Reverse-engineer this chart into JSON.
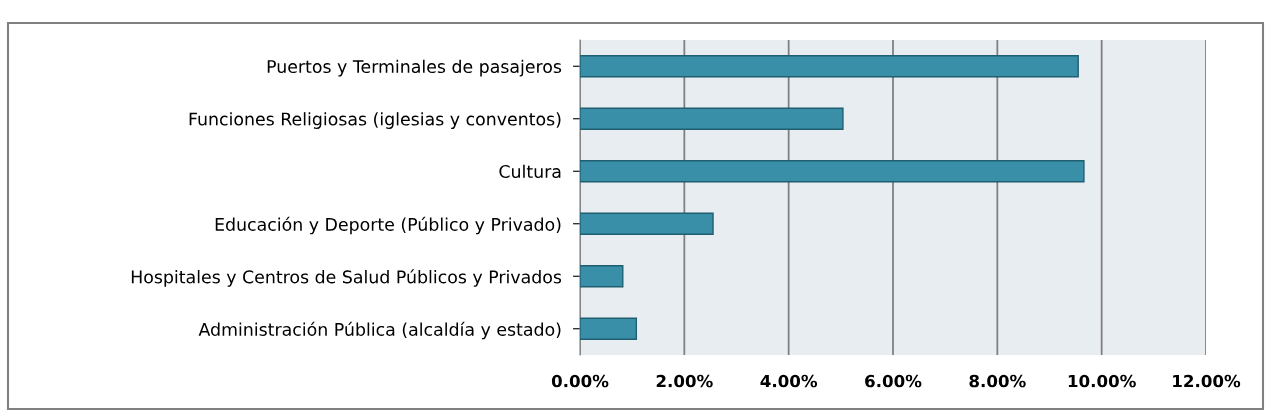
{
  "chart_data": {
    "type": "bar",
    "orientation": "horizontal",
    "categories": [
      "Puertos y Terminales de pasajeros",
      "Funciones Religiosas (iglesias y conventos)",
      "Cultura",
      "Educación y Deporte (Público y Privado)",
      "Hospitales y Centros de Salud Públicos y Privados",
      "Administración Pública (alcaldía y estado)"
    ],
    "values": [
      9.55,
      5.04,
      9.66,
      2.55,
      0.82,
      1.08
    ],
    "color": "#3a8fa8",
    "xlim": [
      0,
      12
    ],
    "xticks": [
      {
        "value": 0,
        "label": "0.00%"
      },
      {
        "value": 2,
        "label": "2.00%"
      },
      {
        "value": 4,
        "label": "4.00%"
      },
      {
        "value": 6,
        "label": "6.00%"
      },
      {
        "value": 8,
        "label": "8.00%"
      },
      {
        "value": 10,
        "label": "10.00%"
      },
      {
        "value": 12,
        "label": "12.00%"
      }
    ],
    "grid": "x"
  }
}
